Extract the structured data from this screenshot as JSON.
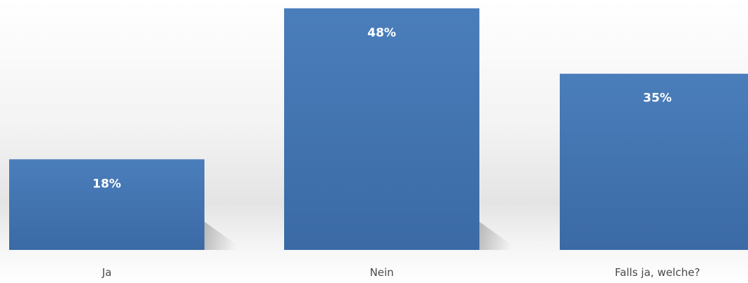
{
  "chart_data": {
    "type": "bar",
    "categories": [
      "Ja",
      "Nein",
      "Falls ja, welche?"
    ],
    "values": [
      18,
      48,
      35
    ],
    "data_labels": [
      "18%",
      "48%",
      "35%"
    ],
    "title": "",
    "xlabel": "",
    "ylabel": "",
    "ylim": [
      0,
      50
    ],
    "grid": false,
    "legend": "none",
    "bar_color": "#4a7ebb",
    "bar_color_dark": "#3b6aa5",
    "label_color": "#ffffff",
    "category_label_color": "#4a4a4a"
  }
}
